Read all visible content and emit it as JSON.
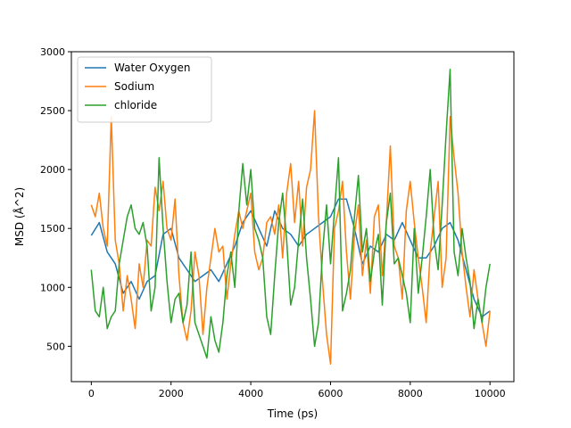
{
  "chart_data": {
    "type": "line",
    "title": "",
    "xlabel": "Time (ps)",
    "ylabel": "MSD (Å^2)",
    "xlim": [
      -500,
      10600
    ],
    "ylim": [
      200,
      3000
    ],
    "xticks": [
      0,
      2000,
      4000,
      6000,
      8000,
      10000
    ],
    "yticks": [
      500,
      1000,
      1500,
      2000,
      2500,
      3000
    ],
    "grid": false,
    "legend_position": "top-left",
    "series": [
      {
        "name": "Water Oxygen",
        "color": "#1f77b4",
        "x": [
          0,
          200,
          400,
          600,
          800,
          1000,
          1200,
          1400,
          1600,
          1800,
          2000,
          2200,
          2400,
          2600,
          2800,
          3000,
          3200,
          3400,
          3600,
          3800,
          4000,
          4200,
          4400,
          4600,
          4800,
          5000,
          5200,
          5400,
          5600,
          5800,
          6000,
          6200,
          6400,
          6600,
          6800,
          7000,
          7200,
          7400,
          7600,
          7800,
          8000,
          8200,
          8400,
          8600,
          8800,
          9000,
          9200,
          9400,
          9600,
          9800,
          10000
        ],
        "values": [
          1440,
          1550,
          1300,
          1200,
          950,
          1050,
          900,
          1050,
          1100,
          1450,
          1500,
          1250,
          1150,
          1050,
          1100,
          1150,
          1050,
          1200,
          1350,
          1550,
          1650,
          1500,
          1350,
          1650,
          1500,
          1450,
          1350,
          1450,
          1500,
          1550,
          1600,
          1750,
          1750,
          1500,
          1200,
          1350,
          1300,
          1450,
          1400,
          1550,
          1400,
          1250,
          1250,
          1350,
          1500,
          1550,
          1400,
          1150,
          900,
          750,
          800
        ]
      },
      {
        "name": "Sodium",
        "color": "#ff7f0e",
        "x": [
          0,
          100,
          200,
          300,
          400,
          500,
          600,
          700,
          800,
          900,
          1000,
          1100,
          1200,
          1300,
          1400,
          1500,
          1600,
          1700,
          1800,
          1900,
          2000,
          2100,
          2200,
          2300,
          2400,
          2500,
          2600,
          2700,
          2800,
          2900,
          3000,
          3100,
          3200,
          3300,
          3400,
          3500,
          3600,
          3700,
          3800,
          3900,
          4000,
          4100,
          4200,
          4300,
          4400,
          4500,
          4600,
          4700,
          4800,
          4900,
          5000,
          5100,
          5200,
          5300,
          5400,
          5500,
          5600,
          5700,
          5800,
          5900,
          6000,
          6100,
          6200,
          6300,
          6400,
          6500,
          6600,
          6700,
          6800,
          6900,
          7000,
          7100,
          7200,
          7300,
          7400,
          7500,
          7600,
          7700,
          7800,
          7900,
          8000,
          8100,
          8200,
          8300,
          8400,
          8500,
          8600,
          8700,
          8800,
          8900,
          9000,
          9100,
          9200,
          9300,
          9400,
          9500,
          9600,
          9700,
          9800,
          9900,
          10000
        ],
        "values": [
          1700,
          1600,
          1800,
          1500,
          1350,
          2450,
          1400,
          1200,
          800,
          1100,
          900,
          650,
          1200,
          1000,
          1400,
          1350,
          1850,
          1650,
          1900,
          1500,
          1400,
          1750,
          1100,
          700,
          550,
          800,
          1300,
          1100,
          600,
          1000,
          1250,
          1500,
          1300,
          1350,
          900,
          1200,
          1450,
          1650,
          1500,
          1650,
          1800,
          1300,
          1150,
          1250,
          1550,
          1600,
          1450,
          1700,
          1250,
          1800,
          2050,
          1550,
          1900,
          1350,
          1850,
          2000,
          2500,
          1600,
          1050,
          600,
          350,
          1500,
          1650,
          1900,
          1300,
          900,
          1450,
          1700,
          1100,
          1400,
          950,
          1600,
          1700,
          1100,
          1550,
          2200,
          1350,
          1250,
          900,
          1650,
          1900,
          1550,
          1250,
          1000,
          700,
          1300,
          1600,
          1900,
          1000,
          1250,
          2450,
          2100,
          1800,
          1300,
          1000,
          750,
          1150,
          900,
          700,
          500,
          800
        ]
      },
      {
        "name": "chloride",
        "color": "#2ca02c",
        "x": [
          0,
          100,
          200,
          300,
          400,
          500,
          600,
          700,
          800,
          900,
          1000,
          1100,
          1200,
          1300,
          1400,
          1500,
          1600,
          1700,
          1800,
          1900,
          2000,
          2100,
          2200,
          2300,
          2400,
          2500,
          2600,
          2700,
          2800,
          2900,
          3000,
          3100,
          3200,
          3300,
          3400,
          3500,
          3600,
          3700,
          3800,
          3900,
          4000,
          4100,
          4200,
          4300,
          4400,
          4500,
          4600,
          4700,
          4800,
          4900,
          5000,
          5100,
          5200,
          5300,
          5400,
          5500,
          5600,
          5700,
          5800,
          5900,
          6000,
          6100,
          6200,
          6300,
          6400,
          6500,
          6600,
          6700,
          6800,
          6900,
          7000,
          7100,
          7200,
          7300,
          7400,
          7500,
          7600,
          7700,
          7800,
          7900,
          8000,
          8100,
          8200,
          8300,
          8400,
          8500,
          8600,
          8700,
          8800,
          8900,
          9000,
          9100,
          9200,
          9300,
          9400,
          9500,
          9600,
          9700,
          9800,
          9900,
          10000
        ],
        "values": [
          1150,
          800,
          750,
          1000,
          650,
          750,
          800,
          1200,
          1400,
          1600,
          1700,
          1500,
          1450,
          1550,
          1350,
          800,
          1000,
          2100,
          1500,
          1050,
          700,
          900,
          950,
          700,
          850,
          1300,
          700,
          600,
          500,
          400,
          750,
          550,
          450,
          700,
          1100,
          1300,
          1000,
          1650,
          2050,
          1700,
          2000,
          1500,
          1400,
          1250,
          750,
          600,
          1100,
          1550,
          1800,
          1400,
          850,
          1000,
          1400,
          1750,
          1250,
          900,
          500,
          700,
          1300,
          1700,
          1200,
          1650,
          2100,
          800,
          950,
          1150,
          1600,
          1950,
          1300,
          1500,
          1050,
          1300,
          1450,
          850,
          1550,
          1800,
          1200,
          1250,
          1100,
          950,
          700,
          1500,
          950,
          1250,
          1600,
          2000,
          1400,
          1150,
          1700,
          2300,
          2850,
          1300,
          1100,
          1500,
          1250,
          1050,
          650,
          900,
          700,
          1000,
          1200
        ]
      }
    ]
  }
}
